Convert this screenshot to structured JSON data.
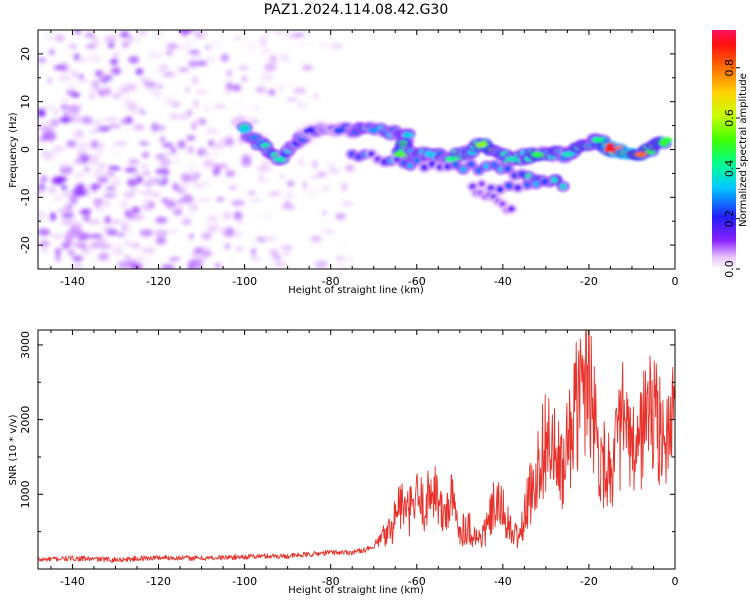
{
  "title": "PAZ1.2024.114.08.42.G30",
  "colors": {
    "snr_line": "#e8312a",
    "axis": "#000000"
  },
  "chart_data": [
    {
      "type": "heatmap",
      "name": "spectrogram",
      "xlabel": "Height of straight line (km)",
      "ylabel": "Frequency (Hz)",
      "xlim": [
        -148,
        0
      ],
      "ylim": [
        -25,
        25
      ],
      "xticks": [
        "-140",
        "-120",
        "-100",
        "-80",
        "-60",
        "-40",
        "-20",
        "0"
      ],
      "yticks": [
        "-20",
        "-10",
        "0",
        "10",
        "20"
      ],
      "colormap": "gist_rainbow_r (white at 0)",
      "noise_region": {
        "x_range": [
          -148,
          -75
        ],
        "y_range": [
          -25,
          25
        ],
        "amplitude_range": [
          0.0,
          0.1
        ]
      },
      "signal_track": [
        {
          "x": -100,
          "y": 4,
          "v": 0.35
        },
        {
          "x": -92,
          "y": -2,
          "v": 0.4
        },
        {
          "x": -85,
          "y": 4,
          "v": 0.2
        },
        {
          "x": -78,
          "y": 4,
          "v": 0.25
        },
        {
          "x": -70,
          "y": 4,
          "v": 0.3
        },
        {
          "x": -62,
          "y": 3,
          "v": 0.35
        },
        {
          "x": -64,
          "y": -1,
          "v": 0.55
        },
        {
          "x": -57,
          "y": -1,
          "v": 0.35
        },
        {
          "x": -52,
          "y": -2,
          "v": 0.45
        },
        {
          "x": -45,
          "y": 1,
          "v": 0.6
        },
        {
          "x": -38,
          "y": -2,
          "v": 0.4
        },
        {
          "x": -32,
          "y": -1,
          "v": 0.5
        },
        {
          "x": -25,
          "y": -1,
          "v": 0.4
        },
        {
          "x": -18,
          "y": 2,
          "v": 0.45
        },
        {
          "x": -15,
          "y": 0,
          "v": 0.95
        },
        {
          "x": -8,
          "y": -1,
          "v": 0.85
        },
        {
          "x": -2,
          "y": 2,
          "v": 0.5
        }
      ],
      "secondary_track": [
        {
          "x": -75,
          "y": -1,
          "v": 0.25
        },
        {
          "x": -60,
          "y": -3,
          "v": 0.3
        },
        {
          "x": -42,
          "y": -4,
          "v": 0.3
        },
        {
          "x": -26,
          "y": -7,
          "v": 0.45
        },
        {
          "x": -47,
          "y": -8,
          "v": 0.15
        },
        {
          "x": -37,
          "y": -13,
          "v": 0.15
        }
      ],
      "colorbar": {
        "label": "Normalized spectral amplitude",
        "ticks": [
          "0.0",
          "0.2",
          "0.4",
          "0.6",
          "0.8"
        ],
        "range": [
          0,
          0.95
        ]
      }
    },
    {
      "type": "line",
      "name": "snr",
      "xlabel": "Height of straight line (km)",
      "ylabel": "SNR (10 * v/v)",
      "xlim": [
        -148,
        0
      ],
      "ylim": [
        0,
        3200
      ],
      "xticks": [
        "-140",
        "-120",
        "-100",
        "-80",
        "-60",
        "-40",
        "-20",
        "0"
      ],
      "yticks": [
        "1000",
        "2000",
        "3000"
      ],
      "x": [
        -148,
        -140,
        -130,
        -120,
        -110,
        -100,
        -95,
        -90,
        -85,
        -80,
        -75,
        -70,
        -66,
        -64,
        -62,
        -60,
        -58,
        -56,
        -54,
        -52,
        -50,
        -48,
        -46,
        -44,
        -42,
        -40,
        -38,
        -36,
        -34,
        -32,
        -30,
        -28,
        -26,
        -24,
        -22,
        -20,
        -18,
        -16,
        -14,
        -12,
        -10,
        -8,
        -6,
        -4,
        -2,
        0
      ],
      "y": [
        120,
        140,
        120,
        150,
        140,
        160,
        170,
        170,
        190,
        220,
        220,
        280,
        500,
        850,
        700,
        900,
        800,
        1100,
        650,
        900,
        500,
        550,
        380,
        480,
        800,
        760,
        450,
        420,
        900,
        1250,
        1700,
        1450,
        1200,
        1900,
        2200,
        2700,
        1550,
        1300,
        1400,
        1950,
        1400,
        1700,
        2100,
        1800,
        1700,
        1900
      ]
    }
  ]
}
